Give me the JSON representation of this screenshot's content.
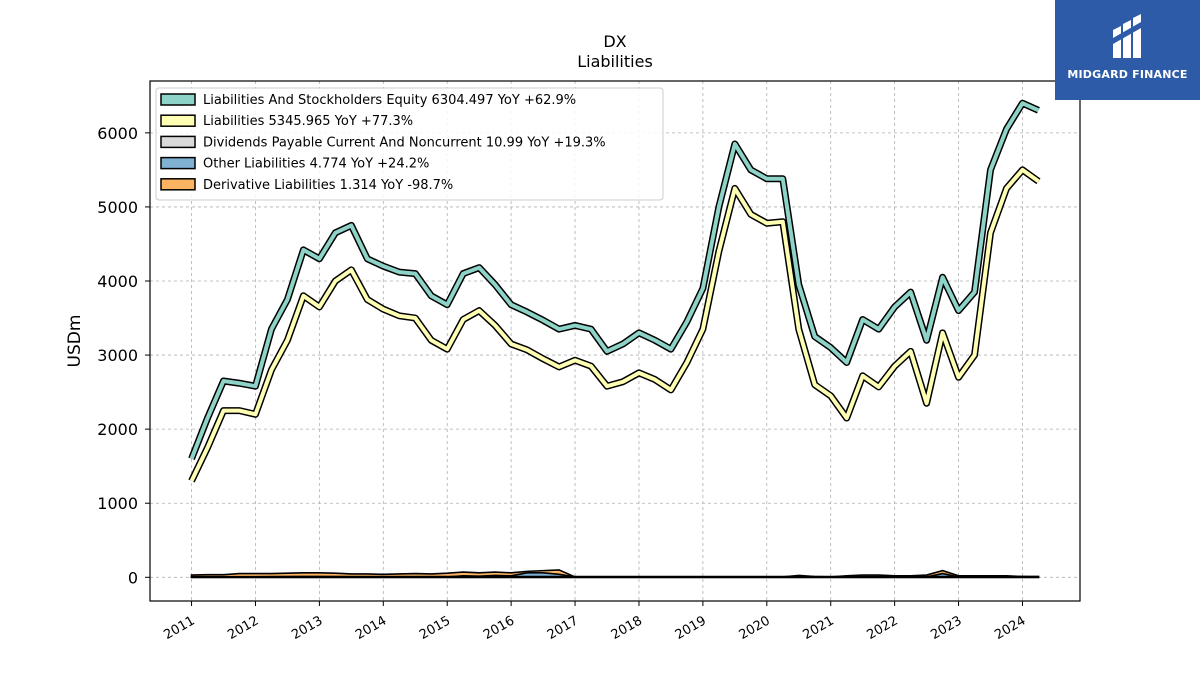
{
  "brand": {
    "name": "MIDGARD FINANCE",
    "bg": "#2d5ba8"
  },
  "chart_data": {
    "type": "line",
    "title": "DX",
    "subtitle": "Liabilities",
    "ylabel": "USDm",
    "xlabel": "",
    "ylim": [
      -320,
      6700
    ],
    "xlim": [
      2010.35,
      2024.9
    ],
    "yticks": [
      0,
      1000,
      2000,
      3000,
      4000,
      5000,
      6000
    ],
    "xticks": [
      2011,
      2012,
      2013,
      2014,
      2015,
      2016,
      2017,
      2018,
      2019,
      2020,
      2021,
      2022,
      2023,
      2024
    ],
    "grid": true,
    "legend_position": "top-left",
    "x": [
      2011.0,
      2011.25,
      2011.5,
      2011.75,
      2012.0,
      2012.25,
      2012.5,
      2012.75,
      2013.0,
      2013.25,
      2013.5,
      2013.75,
      2014.0,
      2014.25,
      2014.5,
      2014.75,
      2015.0,
      2015.25,
      2015.5,
      2015.75,
      2016.0,
      2016.25,
      2016.5,
      2016.75,
      2017.0,
      2017.25,
      2017.5,
      2017.75,
      2018.0,
      2018.25,
      2018.5,
      2018.75,
      2019.0,
      2019.25,
      2019.5,
      2019.75,
      2020.0,
      2020.25,
      2020.5,
      2020.75,
      2021.0,
      2021.25,
      2021.5,
      2021.75,
      2022.0,
      2022.25,
      2022.5,
      2022.75,
      2023.0,
      2023.25,
      2023.5,
      2023.75,
      2024.0,
      2024.25
    ],
    "series": [
      {
        "name": "Liabilities And Stockholders Equity  6304.497 YoY +62.9%",
        "color": "#8dd3c7",
        "type": "line",
        "values": [
          1600,
          2150,
          2650,
          2620,
          2580,
          3350,
          3750,
          4420,
          4300,
          4650,
          4750,
          4300,
          4200,
          4120,
          4100,
          3800,
          3680,
          4100,
          4180,
          3950,
          3680,
          3580,
          3470,
          3350,
          3400,
          3350,
          3050,
          3150,
          3300,
          3200,
          3080,
          3450,
          3900,
          5000,
          5850,
          5500,
          5380,
          5380,
          3950,
          3250,
          3100,
          2900,
          3480,
          3350,
          3650,
          3850,
          3200,
          4050,
          3600,
          3850,
          5500,
          6050,
          6400,
          6304
        ]
      },
      {
        "name": "Liabilities  5345.965 YoY +77.3%",
        "color": "#ffffb3",
        "type": "line",
        "values": [
          1300,
          1750,
          2250,
          2250,
          2200,
          2800,
          3200,
          3800,
          3650,
          4000,
          4150,
          3750,
          3620,
          3530,
          3500,
          3200,
          3080,
          3480,
          3600,
          3400,
          3150,
          3070,
          2950,
          2840,
          2930,
          2850,
          2580,
          2640,
          2760,
          2670,
          2530,
          2900,
          3350,
          4400,
          5250,
          4900,
          4780,
          4800,
          3350,
          2600,
          2450,
          2150,
          2720,
          2570,
          2850,
          3050,
          2350,
          3300,
          2700,
          3000,
          4650,
          5250,
          5500,
          5346
        ]
      },
      {
        "name": "Dividends Payable Current And Noncurrent  10.99 YoY +19.3%",
        "color": "#d9d9d9",
        "type": "area",
        "values": [
          9,
          9,
          9,
          9,
          9,
          10,
          10,
          10,
          10,
          10,
          10,
          10,
          10,
          10,
          10,
          10,
          10,
          10,
          10,
          10,
          10,
          10,
          10,
          10,
          10,
          10,
          10,
          10,
          10,
          10,
          10,
          10,
          10,
          10,
          10,
          10,
          10,
          10,
          10,
          10,
          10,
          10,
          10,
          10,
          10,
          10,
          10,
          10,
          10,
          10,
          10,
          10,
          11,
          11
        ]
      },
      {
        "name": "Other Liabilities  4.774 YoY +24.2%",
        "color": "#80b1d3",
        "type": "area",
        "values": [
          5,
          5,
          5,
          6,
          6,
          6,
          8,
          10,
          10,
          8,
          6,
          6,
          5,
          5,
          5,
          5,
          5,
          20,
          15,
          25,
          20,
          60,
          60,
          40,
          5,
          5,
          5,
          5,
          5,
          5,
          5,
          5,
          5,
          5,
          5,
          5,
          5,
          5,
          5,
          5,
          5,
          5,
          5,
          5,
          5,
          5,
          5,
          50,
          5,
          5,
          5,
          5,
          5,
          5
        ]
      },
      {
        "name": "Derivative Liabilities  1.314 YoY -98.7%",
        "color": "#fdb462",
        "type": "area",
        "values": [
          30,
          35,
          35,
          50,
          50,
          50,
          55,
          60,
          60,
          55,
          45,
          45,
          40,
          45,
          50,
          45,
          55,
          70,
          60,
          70,
          60,
          80,
          90,
          100,
          5,
          5,
          5,
          5,
          5,
          5,
          5,
          5,
          5,
          5,
          5,
          5,
          5,
          5,
          25,
          10,
          5,
          20,
          30,
          30,
          20,
          20,
          30,
          90,
          20,
          20,
          20,
          20,
          10,
          1.3
        ]
      }
    ]
  }
}
